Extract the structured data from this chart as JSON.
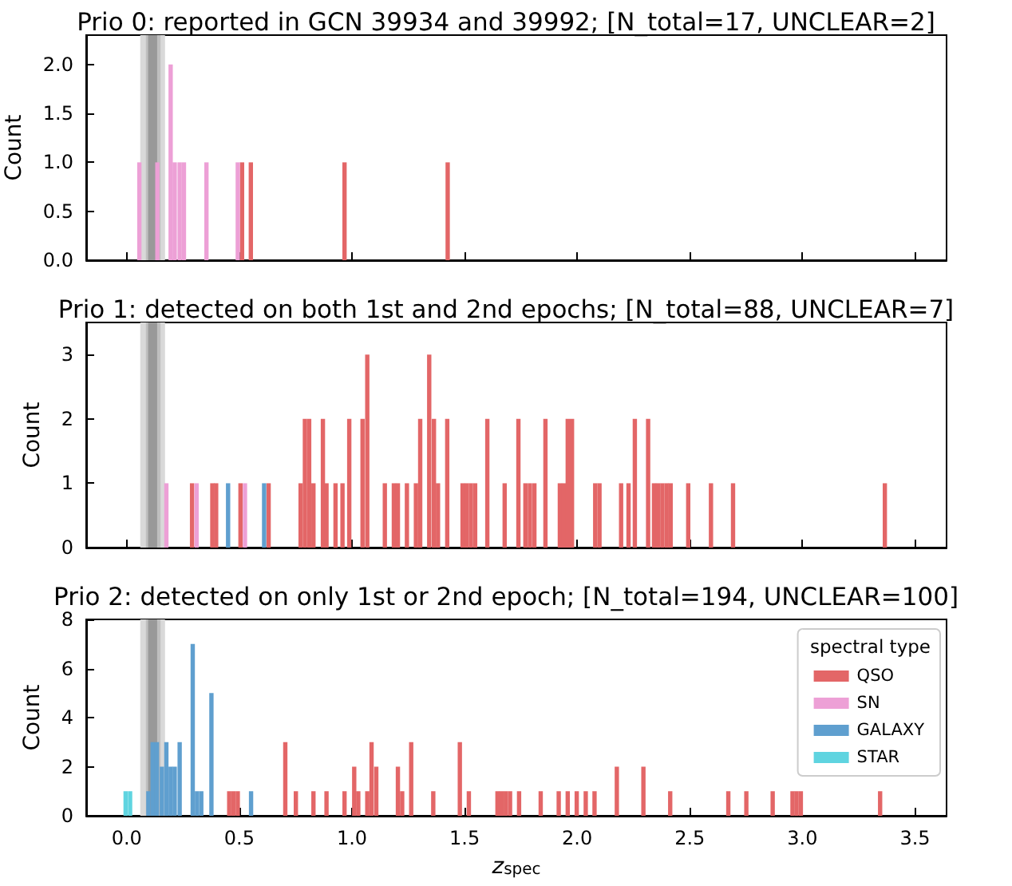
{
  "chart_data": [
    {
      "type": "bar",
      "title": "Prio 0: reported in GCN 39934 and 39992; [N_total=17, UNCLEAR=2]",
      "ylabel": "Count",
      "xlim": [
        -0.18,
        3.64
      ],
      "ylim": [
        0,
        2.3
      ],
      "xticks": [
        {
          "value": 0,
          "label": null
        },
        {
          "value": 0.5,
          "label": null
        },
        {
          "value": 1,
          "label": null
        },
        {
          "value": 1.5,
          "label": null
        },
        {
          "value": 2,
          "label": null
        },
        {
          "value": 2.5,
          "label": null
        },
        {
          "value": 3,
          "label": null
        },
        {
          "value": 3.5,
          "label": null
        }
      ],
      "yticks": [
        {
          "value": 0,
          "label": "0.0"
        },
        {
          "value": 0.5,
          "label": "0.5"
        },
        {
          "value": 1,
          "label": "1.0"
        },
        {
          "value": 1.5,
          "label": "1.5"
        },
        {
          "value": 2,
          "label": "2.0"
        }
      ],
      "tick_labels": "y",
      "legend": false,
      "bands": [
        {
          "axis": "x",
          "from": 0.06,
          "to": 0.17,
          "color": "#d9d9d9"
        },
        {
          "axis": "x",
          "from": 0.085,
          "to": 0.15,
          "color": "#bfbfbf"
        },
        {
          "axis": "x",
          "from": 0.095,
          "to": 0.135,
          "color": "#999999"
        }
      ],
      "series": [
        {
          "color": "#e36667",
          "x": [
            0.512,
            0.551,
            0.967,
            1.425
          ],
          "values": [
            1,
            1,
            1,
            1
          ]
        },
        {
          "color": "#eda0d6",
          "x": [
            0.056,
            0.136,
            0.195,
            0.213,
            0.235,
            0.254,
            0.354,
            0.493
          ],
          "values": [
            1,
            1,
            2,
            1,
            1,
            1,
            1,
            1
          ]
        }
      ]
    },
    {
      "type": "bar",
      "title": "Prio 1: detected on both 1st and 2nd epochs; [N_total=88, UNCLEAR=7]",
      "ylabel": "Count",
      "xlim": [
        -0.18,
        3.64
      ],
      "ylim": [
        0,
        3.5
      ],
      "xticks": [
        {
          "value": 0,
          "label": null
        },
        {
          "value": 0.5,
          "label": null
        },
        {
          "value": 1,
          "label": null
        },
        {
          "value": 1.5,
          "label": null
        },
        {
          "value": 2,
          "label": null
        },
        {
          "value": 2.5,
          "label": null
        },
        {
          "value": 3,
          "label": null
        },
        {
          "value": 3.5,
          "label": null
        }
      ],
      "yticks": [
        0,
        1,
        2,
        3
      ],
      "tick_labels": "y",
      "legend": false,
      "bands": [
        {
          "axis": "x",
          "from": 0.06,
          "to": 0.17,
          "color": "#d9d9d9"
        },
        {
          "axis": "x",
          "from": 0.085,
          "to": 0.15,
          "color": "#bfbfbf"
        },
        {
          "axis": "x",
          "from": 0.095,
          "to": 0.135,
          "color": "#999999"
        }
      ],
      "series": [
        {
          "color": "#e36667",
          "x": [
            0.29,
            0.38,
            0.397,
            0.505,
            0.63,
            0.772,
            0.791,
            0.81,
            0.829,
            0.871,
            0.887,
            0.927,
            0.958,
            0.988,
            1.047,
            1.068,
            1.146,
            1.186,
            1.204,
            1.244,
            1.284,
            1.303,
            1.343,
            1.364,
            1.382,
            1.423,
            1.491,
            1.509,
            1.528,
            1.547,
            1.601,
            1.678,
            1.739,
            1.77,
            1.79,
            1.81,
            1.859,
            1.923,
            1.941,
            1.958,
            1.977,
            2.08,
            2.099,
            2.195,
            2.228,
            2.256,
            2.315,
            2.341,
            2.359,
            2.378,
            2.397,
            2.415,
            2.493,
            2.594,
            2.692,
            3.366
          ],
          "values": [
            1,
            1,
            1,
            1,
            1,
            1,
            2,
            2,
            1,
            2,
            1,
            1,
            1,
            2,
            2,
            3,
            1,
            1,
            1,
            1,
            1,
            2,
            3,
            2,
            1,
            2,
            1,
            1,
            1,
            1,
            2,
            1,
            2,
            1,
            1,
            1,
            2,
            1,
            1,
            2,
            2,
            1,
            1,
            1,
            1,
            2,
            2,
            1,
            1,
            1,
            1,
            1,
            1,
            1,
            1,
            1
          ]
        },
        {
          "color": "#eda0d6",
          "x": [
            0.176,
            0.31,
            0.525
          ],
          "values": [
            1,
            1,
            1
          ]
        },
        {
          "color": "#5f9fcf",
          "x": [
            0.45,
            0.61
          ],
          "values": [
            1,
            1
          ]
        }
      ]
    },
    {
      "type": "bar",
      "title": "Prio 2: detected on only 1st or 2nd epoch; [N_total=194, UNCLEAR=100]",
      "xlabel": "z$_{spec}$",
      "ylabel": "Count",
      "legend_title": "spectral type",
      "xlim": [
        -0.18,
        3.64
      ],
      "ylim": [
        0,
        8
      ],
      "xticks": [
        {
          "value": 0,
          "label": "0.0"
        },
        {
          "value": 0.5,
          "label": "0.5"
        },
        {
          "value": 1,
          "label": "1.0"
        },
        {
          "value": 1.5,
          "label": "1.5"
        },
        {
          "value": 2,
          "label": "2.0"
        },
        {
          "value": 2.5,
          "label": "2.5"
        },
        {
          "value": 3,
          "label": "3.0"
        },
        {
          "value": 3.5,
          "label": "3.5"
        }
      ],
      "yticks": [
        0,
        2,
        4,
        6,
        8
      ],
      "legend": "top right",
      "bands": [
        {
          "axis": "x",
          "from": 0.06,
          "to": 0.17,
          "color": "#d9d9d9"
        },
        {
          "axis": "x",
          "from": 0.085,
          "to": 0.15,
          "color": "#bfbfbf"
        },
        {
          "axis": "x",
          "from": 0.095,
          "to": 0.135,
          "color": "#999999"
        }
      ],
      "series": [
        {
          "name": "QSO",
          "color": "#e36667",
          "x": [
            0.455,
            0.474,
            0.493,
            0.704,
            0.751,
            0.829,
            0.887,
            0.967,
            1.01,
            1.028,
            1.068,
            1.087,
            1.108,
            1.204,
            1.223,
            1.263,
            1.361,
            1.479,
            1.519,
            1.646,
            1.664,
            1.683,
            1.702,
            1.742,
            1.838,
            1.918,
            1.958,
            1.998,
            2.038,
            2.077,
            2.176,
            2.294,
            2.413,
            2.671,
            2.751,
            2.868,
            2.956,
            2.974,
            2.993,
            3.345
          ],
          "values": [
            1,
            1,
            1,
            3,
            1,
            1,
            1,
            1,
            2,
            1,
            1,
            3,
            2,
            2,
            1,
            3,
            1,
            3,
            1,
            1,
            1,
            1,
            1,
            1,
            1,
            1,
            1,
            1,
            1,
            1,
            2,
            2,
            1,
            1,
            1,
            1,
            1,
            1,
            1,
            1
          ]
        },
        {
          "name": "SN",
          "color": "#eda0d6"
        },
        {
          "name": "GALAXY",
          "color": "#5f9fcf",
          "x": [
            0.096,
            0.115,
            0.134,
            0.156,
            0.176,
            0.195,
            0.213,
            0.235,
            0.293,
            0.312,
            0.331,
            0.376,
            0.552
          ],
          "values": [
            1,
            3,
            3,
            2,
            3,
            2,
            2,
            3,
            7,
            1,
            1,
            5,
            1
          ]
        },
        {
          "name": "STAR",
          "color": "#5fd4e0",
          "x": [
            -0.005,
            0.015
          ],
          "values": [
            1,
            1
          ]
        }
      ]
    }
  ]
}
